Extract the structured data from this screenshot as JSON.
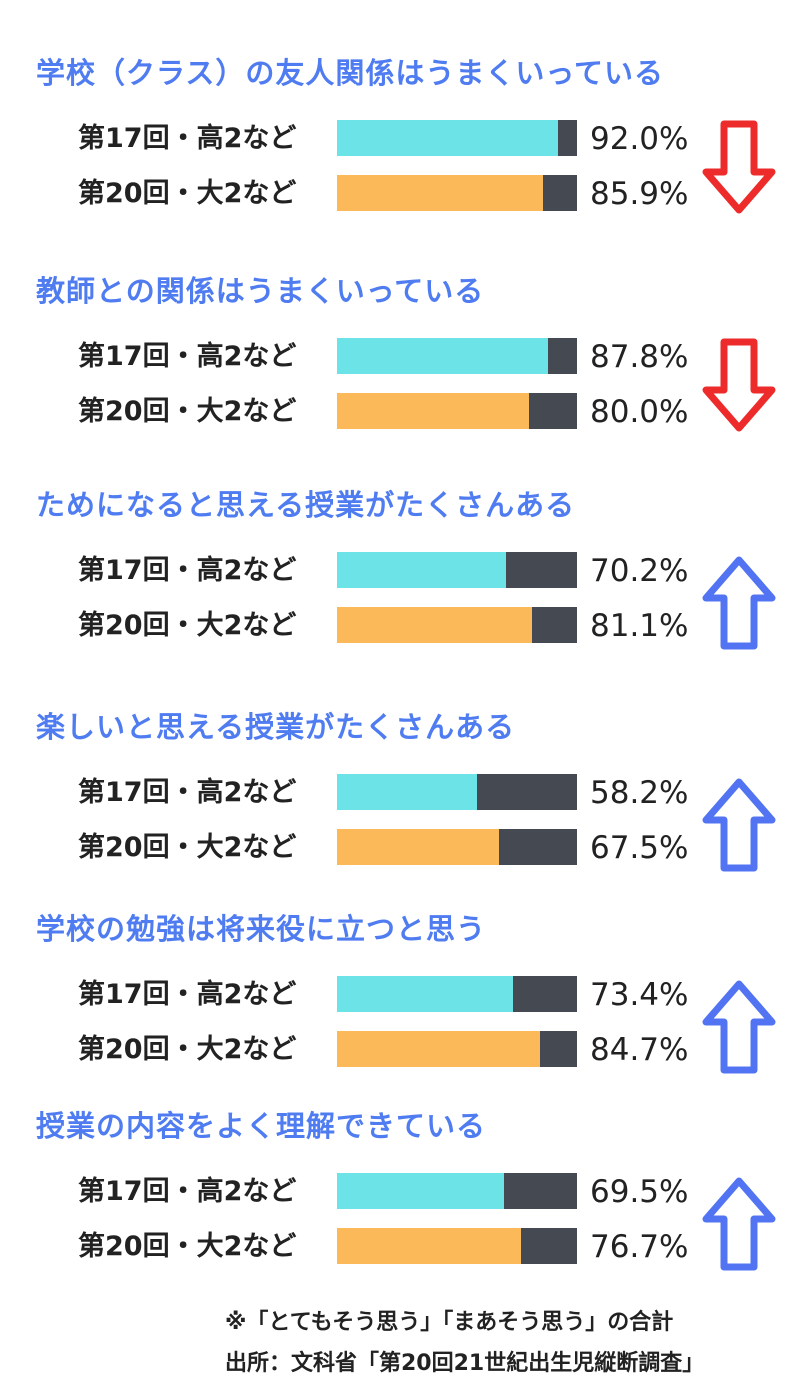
{
  "colors": {
    "title": "#4f7cf0",
    "series_17": "#6ce3e6",
    "series_20": "#fbb95a",
    "remainder": "#454a52",
    "arrow_down": "#ee2b2b",
    "arrow_up": "#5274f3"
  },
  "chart_data": {
    "type": "bar",
    "orientation": "horizontal",
    "stacked_percent": true,
    "value_unit": "%",
    "ylim": [
      0,
      100
    ],
    "series_labels": [
      "第17回・高2など",
      "第20回・大2など"
    ],
    "groups": [
      {
        "title": "学校（クラス）の友人関係はうまくいっている",
        "rows": [
          {
            "label": "第17回・高2など",
            "value": 92.0,
            "display": "92.0%"
          },
          {
            "label": "第20回・大2など",
            "value": 85.9,
            "display": "85.9%"
          }
        ],
        "trend": "down"
      },
      {
        "title": "教師との関係はうまくいっている",
        "rows": [
          {
            "label": "第17回・高2など",
            "value": 87.8,
            "display": "87.8%"
          },
          {
            "label": "第20回・大2など",
            "value": 80.0,
            "display": "80.0%"
          }
        ],
        "trend": "down"
      },
      {
        "title": "ためになると思える授業がたくさんある",
        "rows": [
          {
            "label": "第17回・高2など",
            "value": 70.2,
            "display": "70.2%"
          },
          {
            "label": "第20回・大2など",
            "value": 81.1,
            "display": "81.1%"
          }
        ],
        "trend": "up"
      },
      {
        "title": "楽しいと思える授業がたくさんある",
        "rows": [
          {
            "label": "第17回・高2など",
            "value": 58.2,
            "display": "58.2%"
          },
          {
            "label": "第20回・大2など",
            "value": 67.5,
            "display": "67.5%"
          }
        ],
        "trend": "up"
      },
      {
        "title": "学校の勉強は将来役に立つと思う",
        "rows": [
          {
            "label": "第17回・高2など",
            "value": 73.4,
            "display": "73.4%"
          },
          {
            "label": "第20回・大2など",
            "value": 84.7,
            "display": "84.7%"
          }
        ],
        "trend": "up"
      },
      {
        "title": "授業の内容をよく理解できている",
        "rows": [
          {
            "label": "第17回・高2など",
            "value": 69.5,
            "display": "69.5%"
          },
          {
            "label": "第20回・大2など",
            "value": 76.7,
            "display": "76.7%"
          }
        ],
        "trend": "up"
      }
    ]
  },
  "footnotes": {
    "note": "※「とてもそう思う」「まあそう思う」の合計",
    "source": "出所：文科省「第20回21世紀出生児縦断調査」"
  }
}
